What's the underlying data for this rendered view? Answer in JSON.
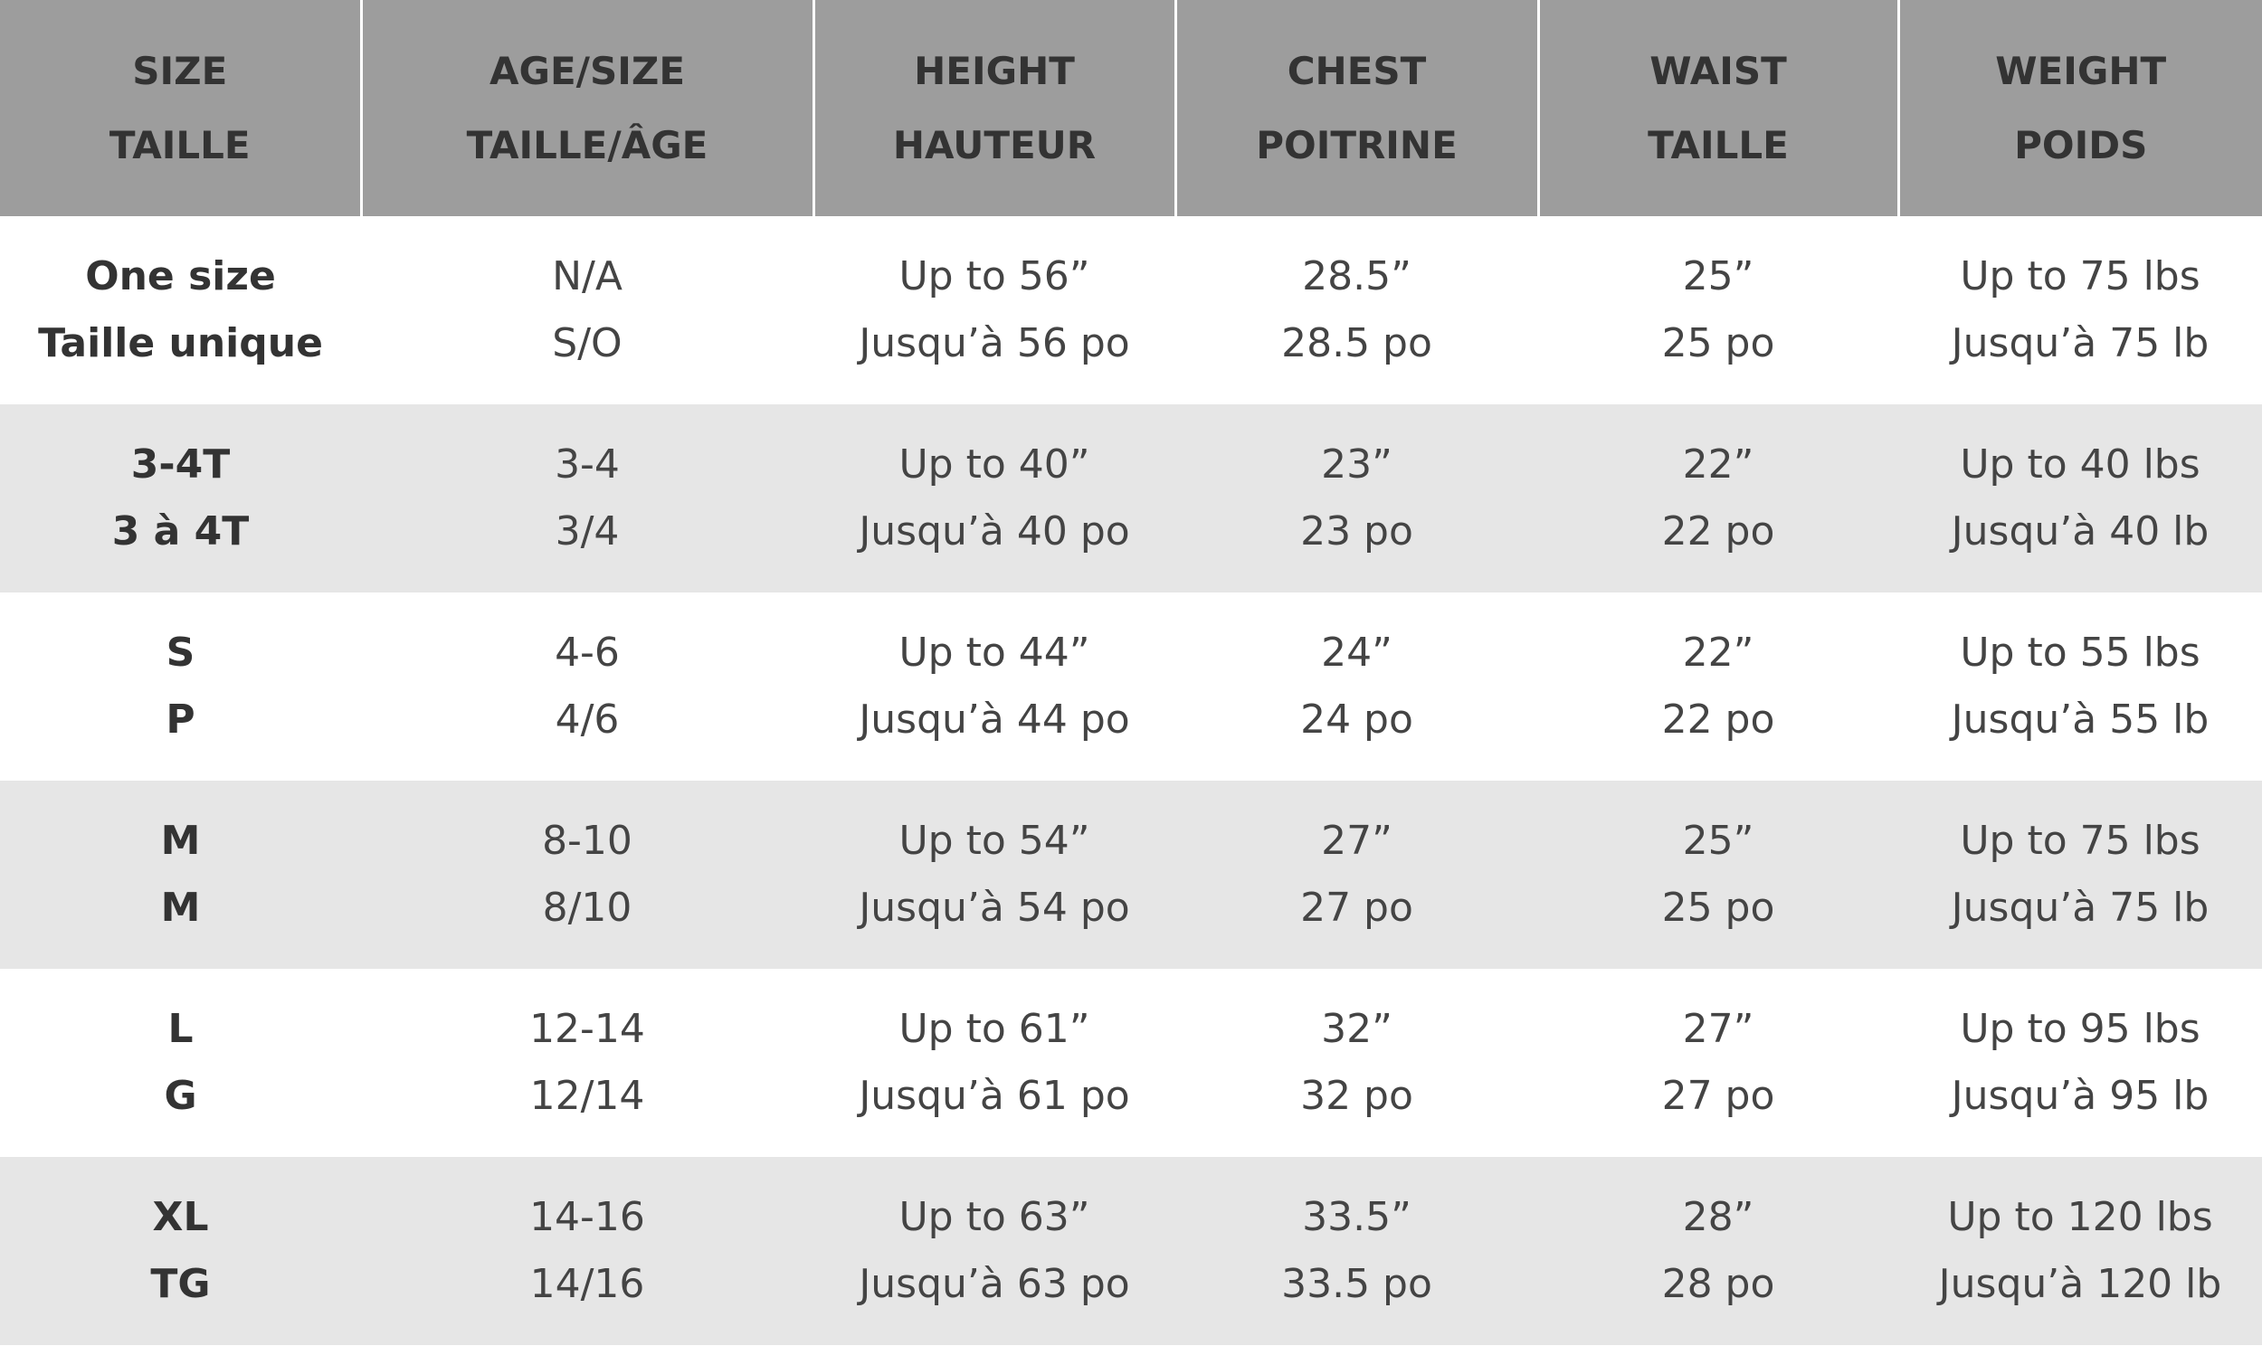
{
  "table": {
    "header": [
      [
        "SIZE",
        "TAILLE"
      ],
      [
        "AGE/SIZE",
        "TAILLE/ÂGE"
      ],
      [
        "HEIGHT",
        "HAUTEUR"
      ],
      [
        "CHEST",
        "POITRINE"
      ],
      [
        "WAIST",
        "TAILLE"
      ],
      [
        "WEIGHT",
        "POIDS"
      ]
    ],
    "rows": [
      [
        [
          "One size",
          "Taille unique"
        ],
        [
          "N/A",
          "S/O"
        ],
        [
          "Up to 56”",
          "Jusqu’à 56 po"
        ],
        [
          "28.5”",
          "28.5 po"
        ],
        [
          "25”",
          "25 po"
        ],
        [
          "Up to 75 lbs",
          "Jusqu’à 75 lb"
        ]
      ],
      [
        [
          "3-4T",
          "3 à 4T"
        ],
        [
          "3-4",
          "3/4"
        ],
        [
          "Up to 40”",
          "Jusqu’à 40 po"
        ],
        [
          "23”",
          "23 po"
        ],
        [
          "22”",
          "22 po"
        ],
        [
          "Up to 40 lbs",
          "Jusqu’à 40 lb"
        ]
      ],
      [
        [
          "S",
          "P"
        ],
        [
          "4-6",
          "4/6"
        ],
        [
          "Up to 44”",
          "Jusqu’à 44 po"
        ],
        [
          "24”",
          "24 po"
        ],
        [
          "22”",
          "22 po"
        ],
        [
          "Up to 55 lbs",
          "Jusqu’à 55 lb"
        ]
      ],
      [
        [
          "M",
          "M"
        ],
        [
          "8-10",
          "8/10"
        ],
        [
          "Up to 54”",
          "Jusqu’à 54 po"
        ],
        [
          "27”",
          "27 po"
        ],
        [
          "25”",
          "25 po"
        ],
        [
          "Up to 75 lbs",
          "Jusqu’à 75 lb"
        ]
      ],
      [
        [
          "L",
          "G"
        ],
        [
          "12-14",
          "12/14"
        ],
        [
          "Up to 61”",
          "Jusqu’à 61 po"
        ],
        [
          "32”",
          "32 po"
        ],
        [
          "27”",
          "27 po"
        ],
        [
          "Up to 95 lbs",
          "Jusqu’à 95 lb"
        ]
      ],
      [
        [
          "XL",
          "TG"
        ],
        [
          "14-16",
          "14/16"
        ],
        [
          "Up to 63”",
          "Jusqu’à 63 po"
        ],
        [
          "33.5”",
          "33.5 po"
        ],
        [
          "28”",
          "28 po"
        ],
        [
          "Up to 120 lbs",
          "Jusqu’à 120 lb"
        ]
      ]
    ]
  }
}
